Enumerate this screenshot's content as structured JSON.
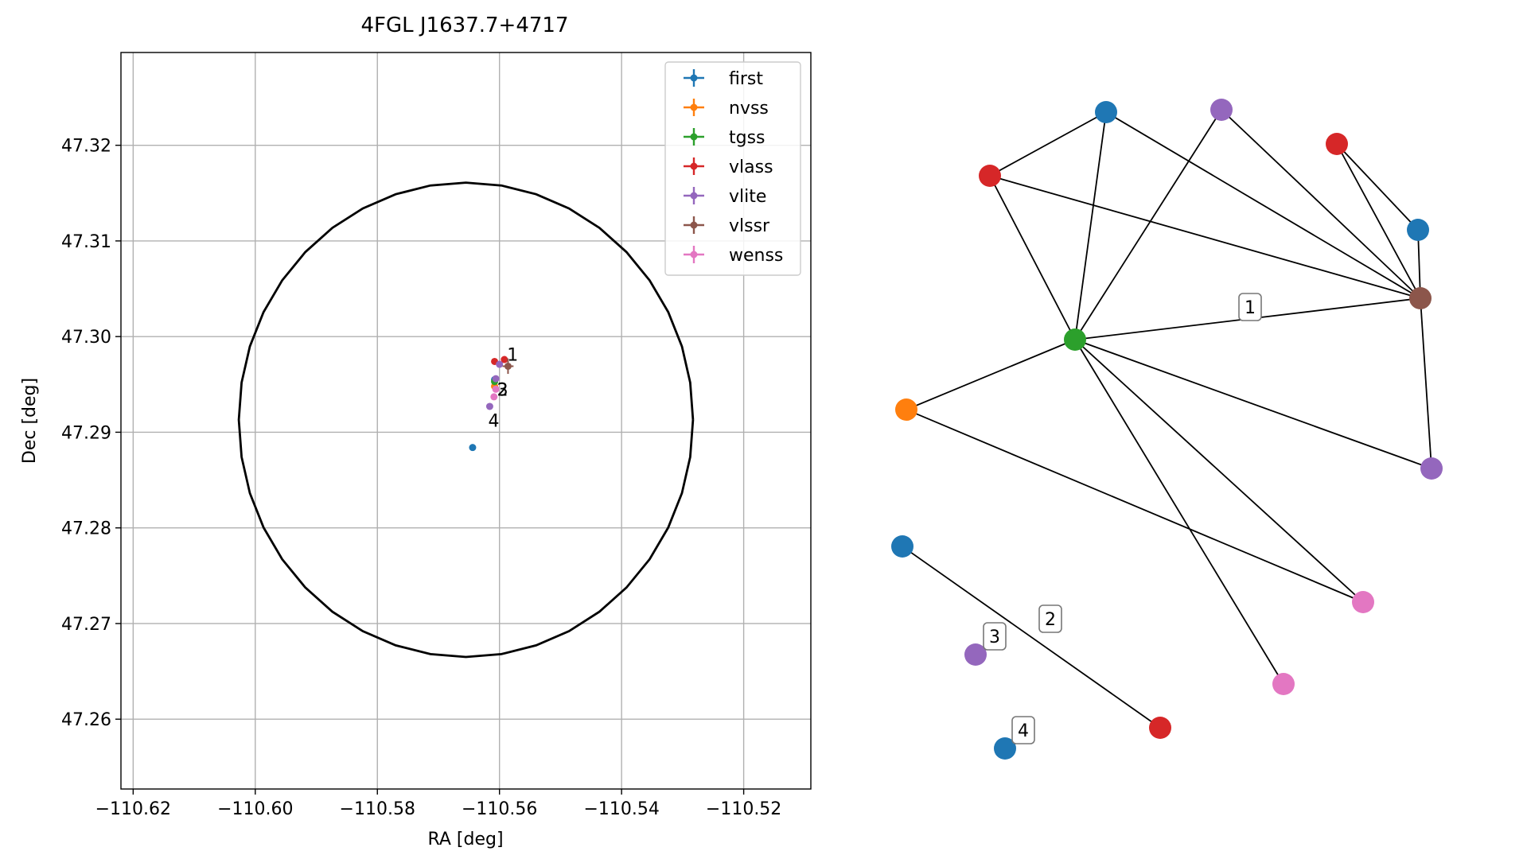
{
  "chart_data": [
    {
      "type": "scatter",
      "title": "4FGL J1637.7+4717",
      "xlabel": "RA [deg]",
      "ylabel": "Dec [deg]",
      "xlim": [
        -110.622,
        -110.509
      ],
      "ylim": [
        47.2527,
        47.3297
      ],
      "xticks": [
        -110.62,
        -110.6,
        -110.58,
        -110.56,
        -110.54,
        -110.52
      ],
      "xtick_labels": [
        "−110.62",
        "−110.60",
        "−110.58",
        "−110.56",
        "−110.54",
        "−110.52"
      ],
      "yticks": [
        47.26,
        47.27,
        47.28,
        47.29,
        47.3,
        47.31,
        47.32
      ],
      "ytick_labels": [
        "47.26",
        "47.27",
        "47.28",
        "47.29",
        "47.30",
        "47.31",
        "47.32"
      ],
      "grid": true,
      "legend_position": "top-right",
      "ellipse": {
        "center": [
          -110.5655,
          47.2913
        ],
        "ra_semi_axis": 0.0372,
        "dec_semi_axis": 0.0248,
        "color": "#000000"
      },
      "series": [
        {
          "name": "first",
          "color": "#1f77b4",
          "points": [
            {
              "x": -110.5644,
              "y": 47.2884
            },
            {
              "x": -110.5608,
              "y": 47.2955
            }
          ]
        },
        {
          "name": "nvss",
          "color": "#ff7f0e",
          "points": [
            {
              "x": -110.5608,
              "y": 47.2948
            }
          ]
        },
        {
          "name": "tgss",
          "color": "#2ca02c",
          "points": [
            {
              "x": -110.5608,
              "y": 47.2953
            }
          ]
        },
        {
          "name": "vlass",
          "color": "#d62728",
          "points": [
            {
              "x": -110.5608,
              "y": 47.2974
            },
            {
              "x": -110.5592,
              "y": 47.2976
            }
          ]
        },
        {
          "name": "vlite",
          "color": "#9467bd",
          "points": [
            {
              "x": -110.56,
              "y": 47.2971
            },
            {
              "x": -110.5606,
              "y": 47.2956
            },
            {
              "x": -110.5616,
              "y": 47.2927
            }
          ]
        },
        {
          "name": "vlssr",
          "color": "#8c564b",
          "points": [
            {
              "x": -110.5586,
              "y": 47.2969
            }
          ],
          "errorbar": {
            "x": 0.0009,
            "y": 0.0008
          }
        },
        {
          "name": "wenss",
          "color": "#e377c2",
          "points": [
            {
              "x": -110.5606,
              "y": 47.2945
            },
            {
              "x": -110.5609,
              "y": 47.2937
            }
          ]
        }
      ],
      "annotations": [
        {
          "text": "1",
          "x": -110.5594,
          "y": 47.2978
        },
        {
          "text": "2",
          "x": -110.5604,
          "y": 47.2945
        },
        {
          "text": "3",
          "x": -110.5604,
          "y": 47.2945
        },
        {
          "text": "4",
          "x": -110.5625,
          "y": 47.2899
        }
      ]
    },
    {
      "type": "network",
      "nodes": [
        {
          "id": "first_a",
          "color": "#1f77b4"
        },
        {
          "id": "vlite_a",
          "color": "#9467bd"
        },
        {
          "id": "vlass_a",
          "color": "#d62728"
        },
        {
          "id": "vlass_b",
          "color": "#d62728"
        },
        {
          "id": "first_b",
          "color": "#1f77b4"
        },
        {
          "id": "vlssr",
          "color": "#8c564b"
        },
        {
          "id": "tgss",
          "color": "#2ca02c"
        },
        {
          "id": "nvss",
          "color": "#ff7f0e"
        },
        {
          "id": "vlite_b",
          "color": "#9467bd"
        },
        {
          "id": "first_c",
          "color": "#1f77b4"
        },
        {
          "id": "wenss_a",
          "color": "#e377c2"
        },
        {
          "id": "vlite_c",
          "color": "#9467bd"
        },
        {
          "id": "wenss_b",
          "color": "#e377c2"
        },
        {
          "id": "vlass_c",
          "color": "#d62728"
        },
        {
          "id": "first_d",
          "color": "#1f77b4"
        }
      ],
      "edges": [
        [
          "vlass_a",
          "first_a"
        ],
        [
          "vlass_a",
          "tgss"
        ],
        [
          "vlass_a",
          "vlssr"
        ],
        [
          "first_a",
          "tgss"
        ],
        [
          "first_a",
          "vlssr"
        ],
        [
          "vlite_a",
          "tgss"
        ],
        [
          "vlite_a",
          "vlssr"
        ],
        [
          "vlass_b",
          "first_b"
        ],
        [
          "vlass_b",
          "vlssr"
        ],
        [
          "first_b",
          "vlssr"
        ],
        [
          "tgss",
          "vlssr"
        ],
        [
          "tgss",
          "nvss"
        ],
        [
          "tgss",
          "vlite_b"
        ],
        [
          "tgss",
          "wenss_a"
        ],
        [
          "tgss",
          "wenss_b"
        ],
        [
          "vlssr",
          "vlite_b"
        ],
        [
          "nvss",
          "wenss_a"
        ],
        [
          "first_c",
          "vlass_c"
        ]
      ],
      "edge_labels": [
        {
          "text": "1",
          "edge": [
            "tgss",
            "vlssr"
          ]
        },
        {
          "text": "2",
          "edge": [
            "first_c",
            "vlass_c"
          ]
        }
      ],
      "node_labels": [
        {
          "text": "3",
          "node": "vlite_c"
        },
        {
          "text": "4",
          "node": "first_d"
        }
      ]
    }
  ]
}
